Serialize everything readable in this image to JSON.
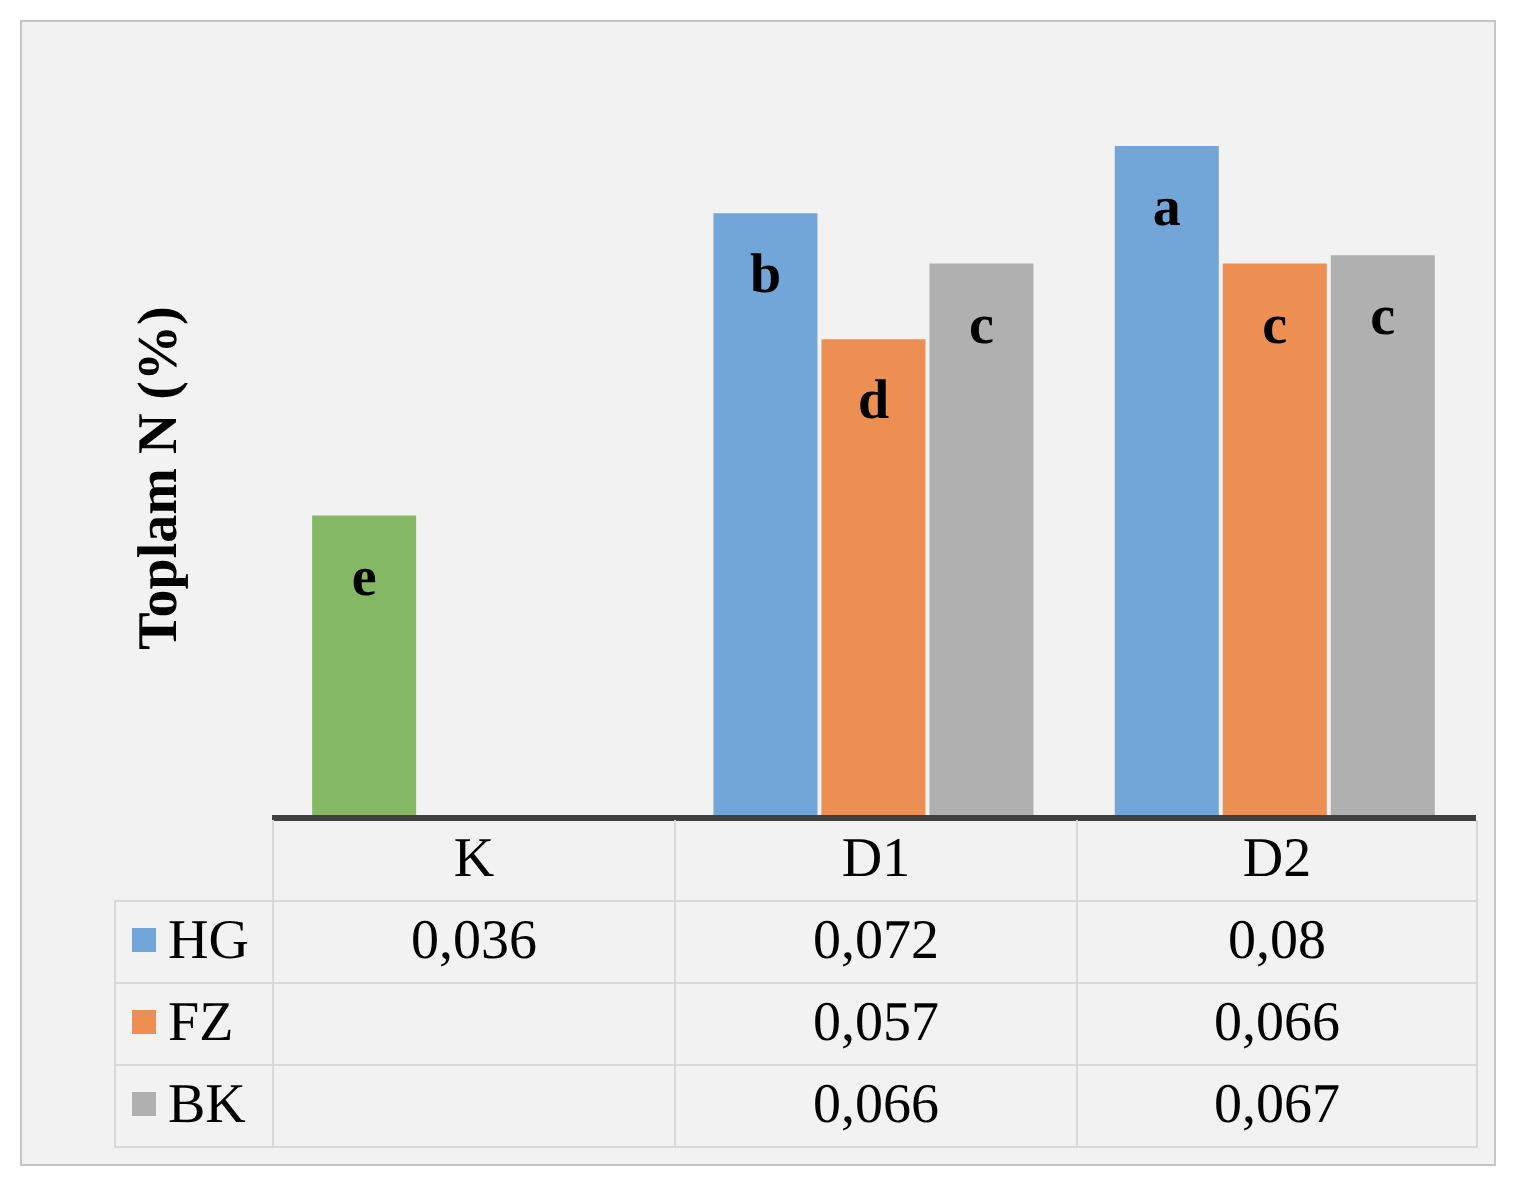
{
  "chart_data": {
    "type": "bar",
    "ylabel": "Toplam N (%)",
    "categories": [
      "K",
      "D1",
      "D2"
    ],
    "series": [
      {
        "name": "HG",
        "color": "#72a6d8",
        "colors": [
          "#84b864",
          "#72a6d8",
          "#72a6d8"
        ],
        "values": [
          0.036,
          0.072,
          0.08
        ],
        "value_labels": [
          "0,036",
          "0,072",
          "0,08"
        ]
      },
      {
        "name": "FZ",
        "color": "#ed8f52",
        "values": [
          null,
          0.057,
          0.066
        ],
        "value_labels": [
          null,
          "0,057",
          "0,066"
        ]
      },
      {
        "name": "BK",
        "color": "#b0b0b0",
        "values": [
          null,
          0.066,
          0.067
        ],
        "value_labels": [
          null,
          "0,066",
          "0,067"
        ]
      }
    ],
    "annotations": [
      "e",
      "b",
      "d",
      "c",
      "a",
      "c",
      "c"
    ],
    "legend": "bottom"
  }
}
